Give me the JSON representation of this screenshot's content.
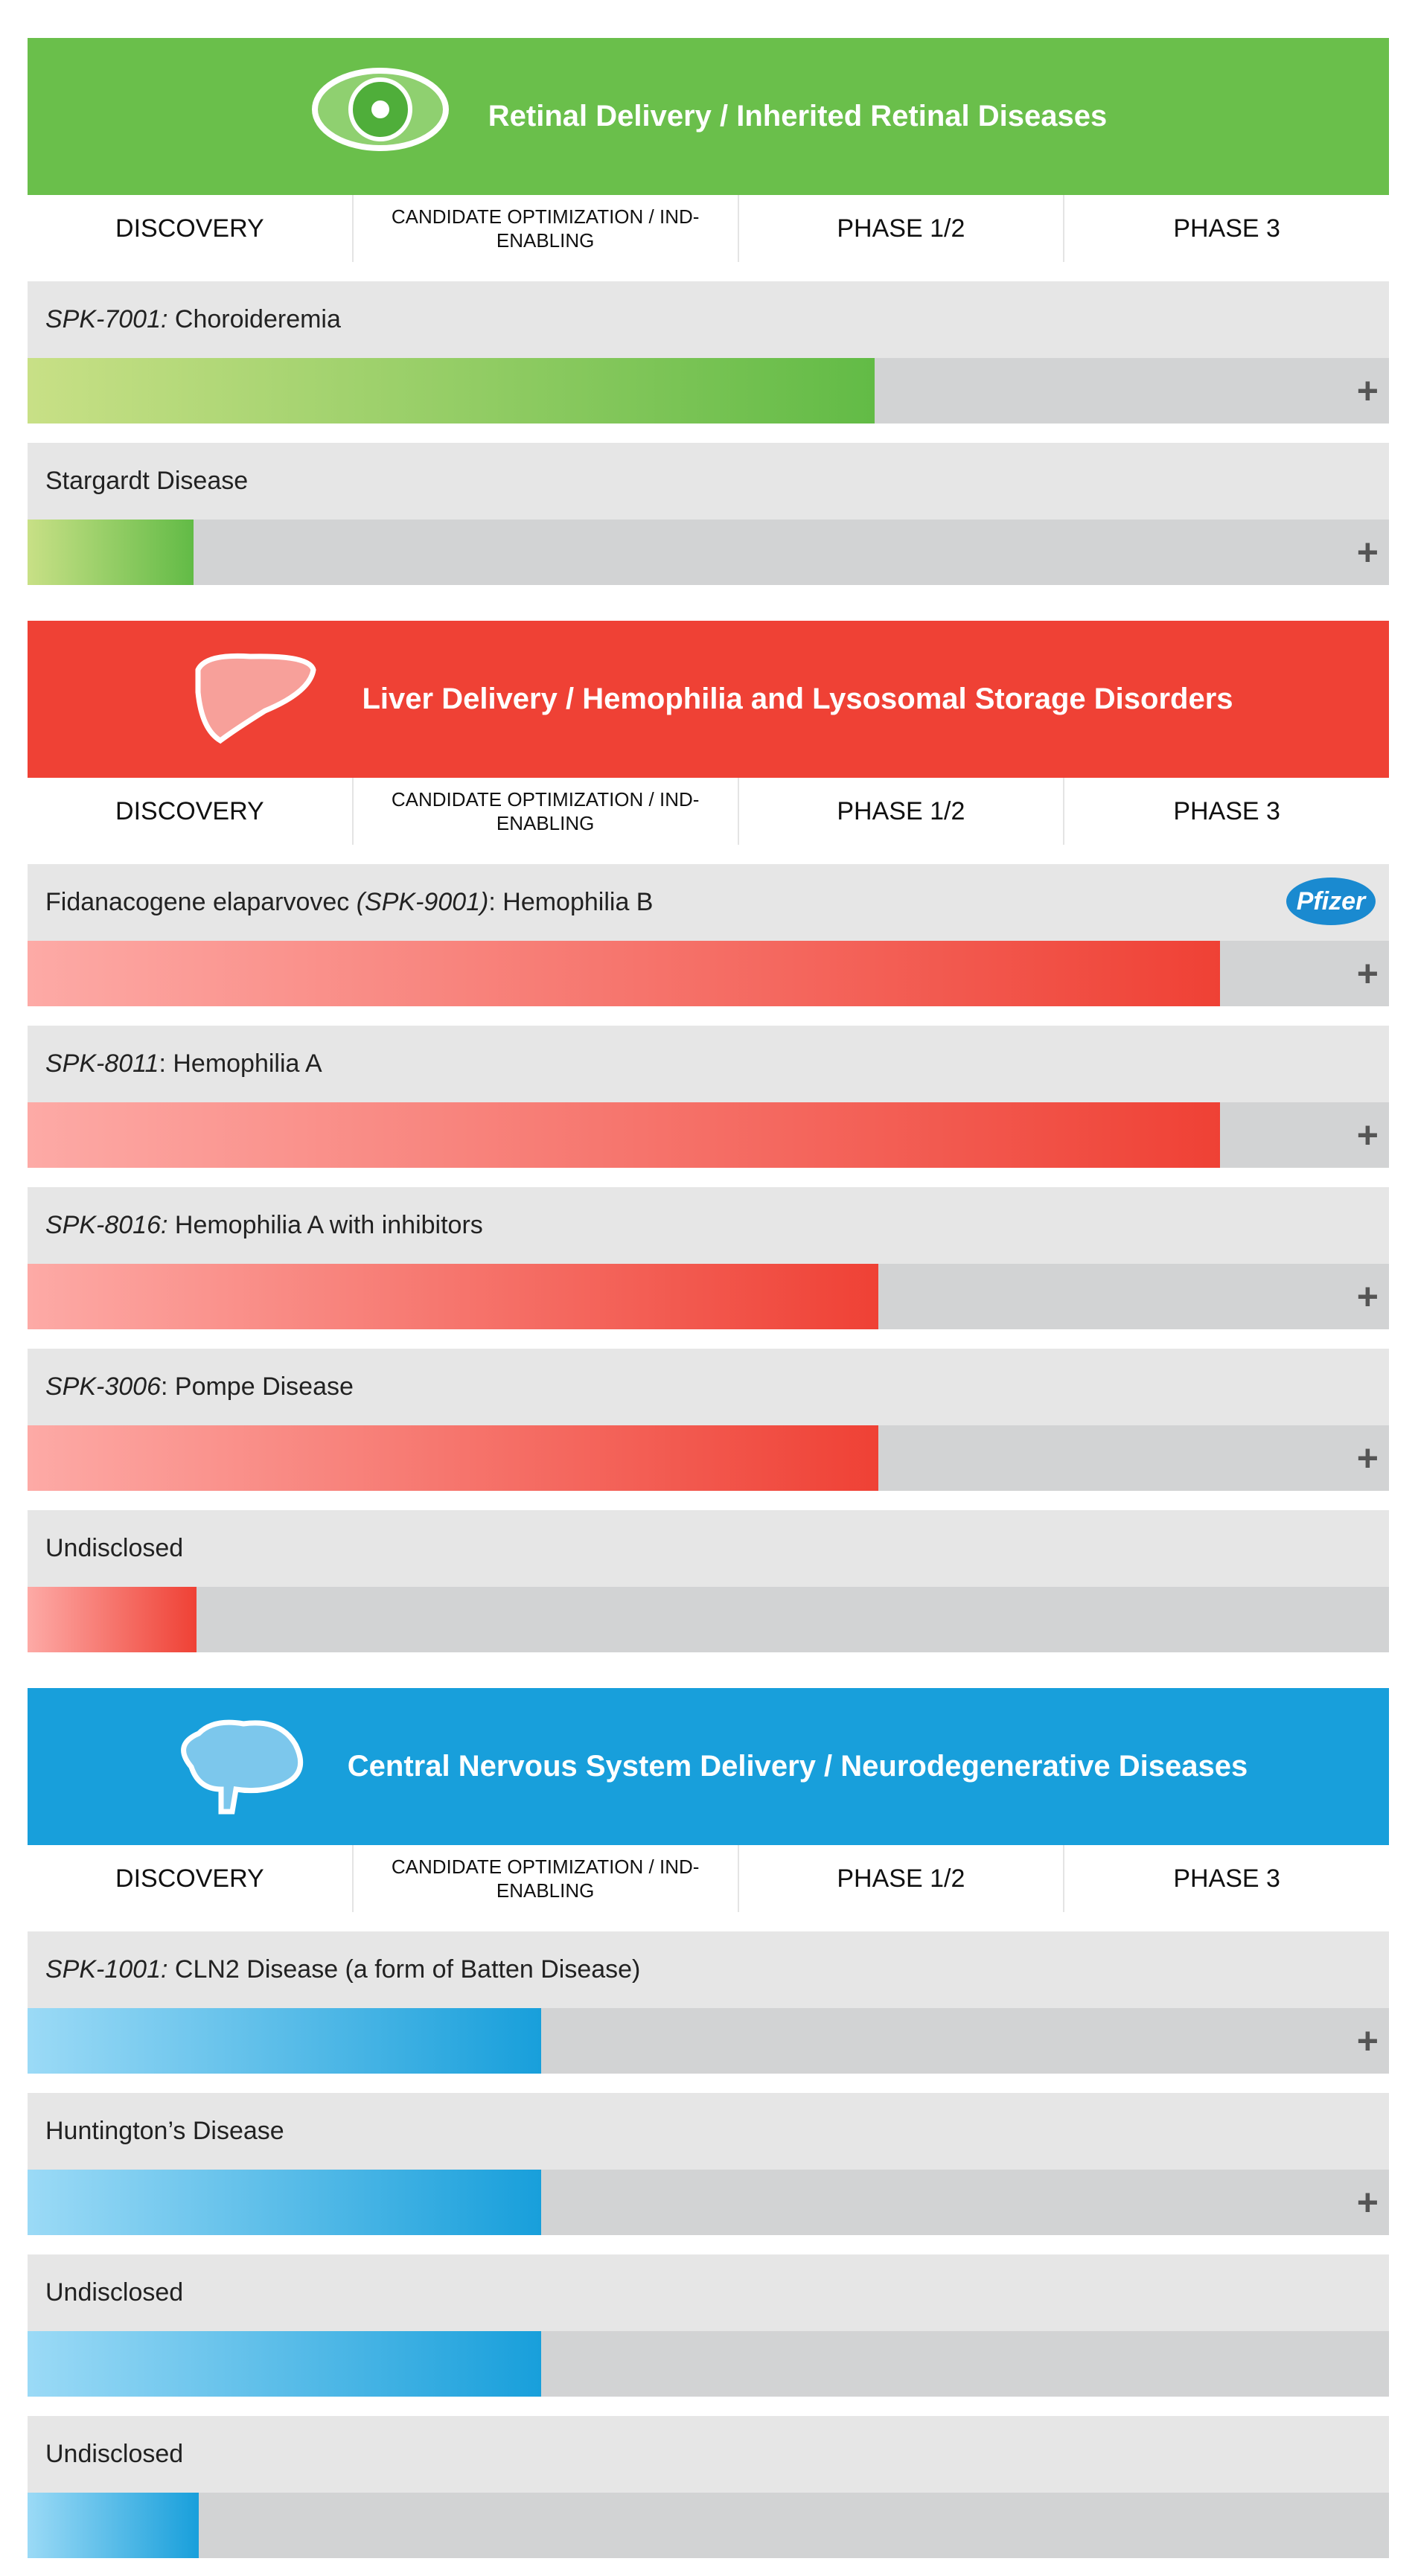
{
  "sections": [
    {
      "title": "Retinal Delivery / Inherited Retinal Diseases",
      "phases": [
        "DISCOVERY",
        "CANDIDATE OPTIMIZATION / IND-ENABLING",
        "PHASE 1/2",
        "PHASE 3"
      ],
      "items": [
        {
          "parts": [
            {
              "text": "SPK-7001:",
              "italic": true
            },
            {
              "text": " Choroideremia",
              "italic": false
            }
          ],
          "expandable": true
        },
        {
          "parts": [
            {
              "text": "Stargardt Disease",
              "italic": false
            }
          ],
          "expandable": true
        }
      ]
    },
    {
      "title": "Liver Delivery / Hemophilia and Lysosomal Storage Disorders",
      "phases": [
        "DISCOVERY",
        "CANDIDATE OPTIMIZATION / IND-ENABLING",
        "PHASE 1/2",
        "PHASE 3"
      ],
      "items": [
        {
          "parts": [
            {
              "text": "Fidanacogene elaparvovec ",
              "italic": false
            },
            {
              "text": "(SPK-9001)",
              "italic": true
            },
            {
              "text": ": Hemophilia B",
              "italic": false
            }
          ],
          "expandable": true,
          "partner": "Pfizer"
        },
        {
          "parts": [
            {
              "text": "SPK-8011",
              "italic": true
            },
            {
              "text": ": Hemophilia A",
              "italic": false
            }
          ],
          "expandable": true
        },
        {
          "parts": [
            {
              "text": "SPK-8016:",
              "italic": true
            },
            {
              "text": " Hemophilia A with inhibitors",
              "italic": false
            }
          ],
          "expandable": true
        },
        {
          "parts": [
            {
              "text": "SPK-3006",
              "italic": true
            },
            {
              "text": ": Pompe Disease",
              "italic": false
            }
          ],
          "expandable": true
        },
        {
          "parts": [
            {
              "text": "Undisclosed",
              "italic": false
            }
          ],
          "expandable": false
        }
      ]
    },
    {
      "title": "Central Nervous System Delivery / Neurodegenerative Diseases",
      "phases": [
        "DISCOVERY",
        "CANDIDATE OPTIMIZATION / IND-ENABLING",
        "PHASE 1/2",
        "PHASE 3"
      ],
      "items": [
        {
          "parts": [
            {
              "text": "SPK-1001:",
              "italic": true
            },
            {
              "text": " CLN2 Disease (a form of Batten Disease)",
              "italic": false
            }
          ],
          "expandable": true
        },
        {
          "parts": [
            {
              "text": "Huntington’s Disease",
              "italic": false
            }
          ],
          "expandable": true
        },
        {
          "parts": [
            {
              "text": "Undisclosed",
              "italic": false
            }
          ],
          "expandable": false
        },
        {
          "parts": [
            {
              "text": "Undisclosed",
              "italic": false
            }
          ],
          "expandable": false
        }
      ]
    }
  ]
}
